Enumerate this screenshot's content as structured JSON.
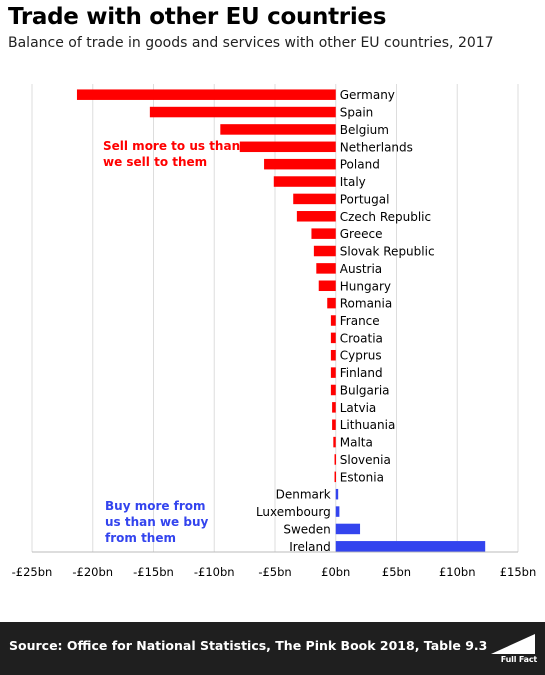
{
  "header": {
    "title": "Trade with other EU countries",
    "subtitle": "Balance of trade in goods and services with other EU countries, 2017"
  },
  "footer": {
    "source": "Source: Office for National Statistics, The Pink Book 2018, Table 9.3",
    "logo_text": "Full Fact"
  },
  "colors": {
    "deficit": "#ff0000",
    "surplus": "#3344ee",
    "grid": "#dddddd"
  },
  "chart_data": {
    "type": "bar",
    "orientation": "horizontal",
    "unit": "£bn",
    "xlim": [
      -25,
      15
    ],
    "x_ticks": [
      -25,
      -20,
      -15,
      -10,
      -5,
      0,
      5,
      10,
      15
    ],
    "x_tick_labels": [
      "-£25bn",
      "-£20bn",
      "-£15bn",
      "-£10bn",
      "-£5bn",
      "£0bn",
      "£5bn",
      "£10bn",
      "£15bn"
    ],
    "grid": true,
    "categories": [
      "Germany",
      "Spain",
      "Belgium",
      "Netherlands",
      "Poland",
      "Italy",
      "Portugal",
      "Czech Republic",
      "Greece",
      "Slovak Republic",
      "Austria",
      "Hungary",
      "Romania",
      "France",
      "Croatia",
      "Cyprus",
      "Finland",
      "Bulgaria",
      "Latvia",
      "Lithuania",
      "Malta",
      "Slovenia",
      "Estonia",
      "Denmark",
      "Luxembourg",
      "Sweden",
      "Ireland"
    ],
    "values": [
      -21.3,
      -15.3,
      -9.5,
      -7.9,
      -5.9,
      -5.1,
      -3.5,
      -3.2,
      -2.0,
      -1.8,
      -1.6,
      -1.4,
      -0.7,
      -0.4,
      -0.4,
      -0.4,
      -0.4,
      -0.4,
      -0.3,
      -0.3,
      -0.2,
      -0.1,
      -0.1,
      0.2,
      0.3,
      2.0,
      12.3
    ],
    "annotations": [
      {
        "text": "Sell more to us than we sell to them",
        "lines": [
          "Sell more to us than",
          "we sell to them"
        ],
        "color": "#ff0000"
      },
      {
        "text": "Buy more from us than we buy from them",
        "lines": [
          "Buy more from",
          "us than we buy",
          "from them"
        ],
        "color": "#3344ee"
      }
    ]
  }
}
